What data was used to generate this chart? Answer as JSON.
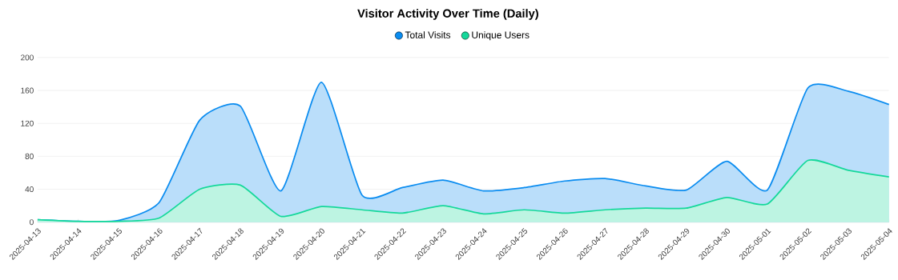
{
  "chart_data": {
    "type": "area",
    "title": "Visitor Activity Over Time (Daily)",
    "categories": [
      "2025-04-13",
      "2025-04-14",
      "2025-04-15",
      "2025-04-16",
      "2025-04-17",
      "2025-04-18",
      "2025-04-19",
      "2025-04-20",
      "2025-04-21",
      "2025-04-22",
      "2025-04-23",
      "2025-04-24",
      "2025-04-25",
      "2025-04-26",
      "2025-04-27",
      "2025-04-28",
      "2025-04-29",
      "2025-04-30",
      "2025-05-01",
      "2025-05-02",
      "2025-05-03",
      "2025-05-04"
    ],
    "series": [
      {
        "name": "Total Visits",
        "color": "#0a8cf0",
        "values": [
          3,
          1,
          2,
          24,
          124,
          141,
          38,
          170,
          33,
          42,
          51,
          38,
          42,
          50,
          53,
          44,
          39,
          74,
          39,
          163,
          159,
          143
        ]
      },
      {
        "name": "Unique Users",
        "color": "#14d89a",
        "values": [
          3,
          1,
          1,
          5,
          40,
          45,
          7,
          19,
          15,
          11,
          20,
          10,
          15,
          11,
          15,
          17,
          17,
          30,
          22,
          75,
          63,
          55
        ]
      }
    ],
    "ylim": [
      0,
      200
    ],
    "yticks": [
      0,
      40,
      80,
      120,
      160,
      200
    ],
    "grid": "y",
    "legend": "top",
    "marker": "none",
    "line_style": "solid"
  }
}
